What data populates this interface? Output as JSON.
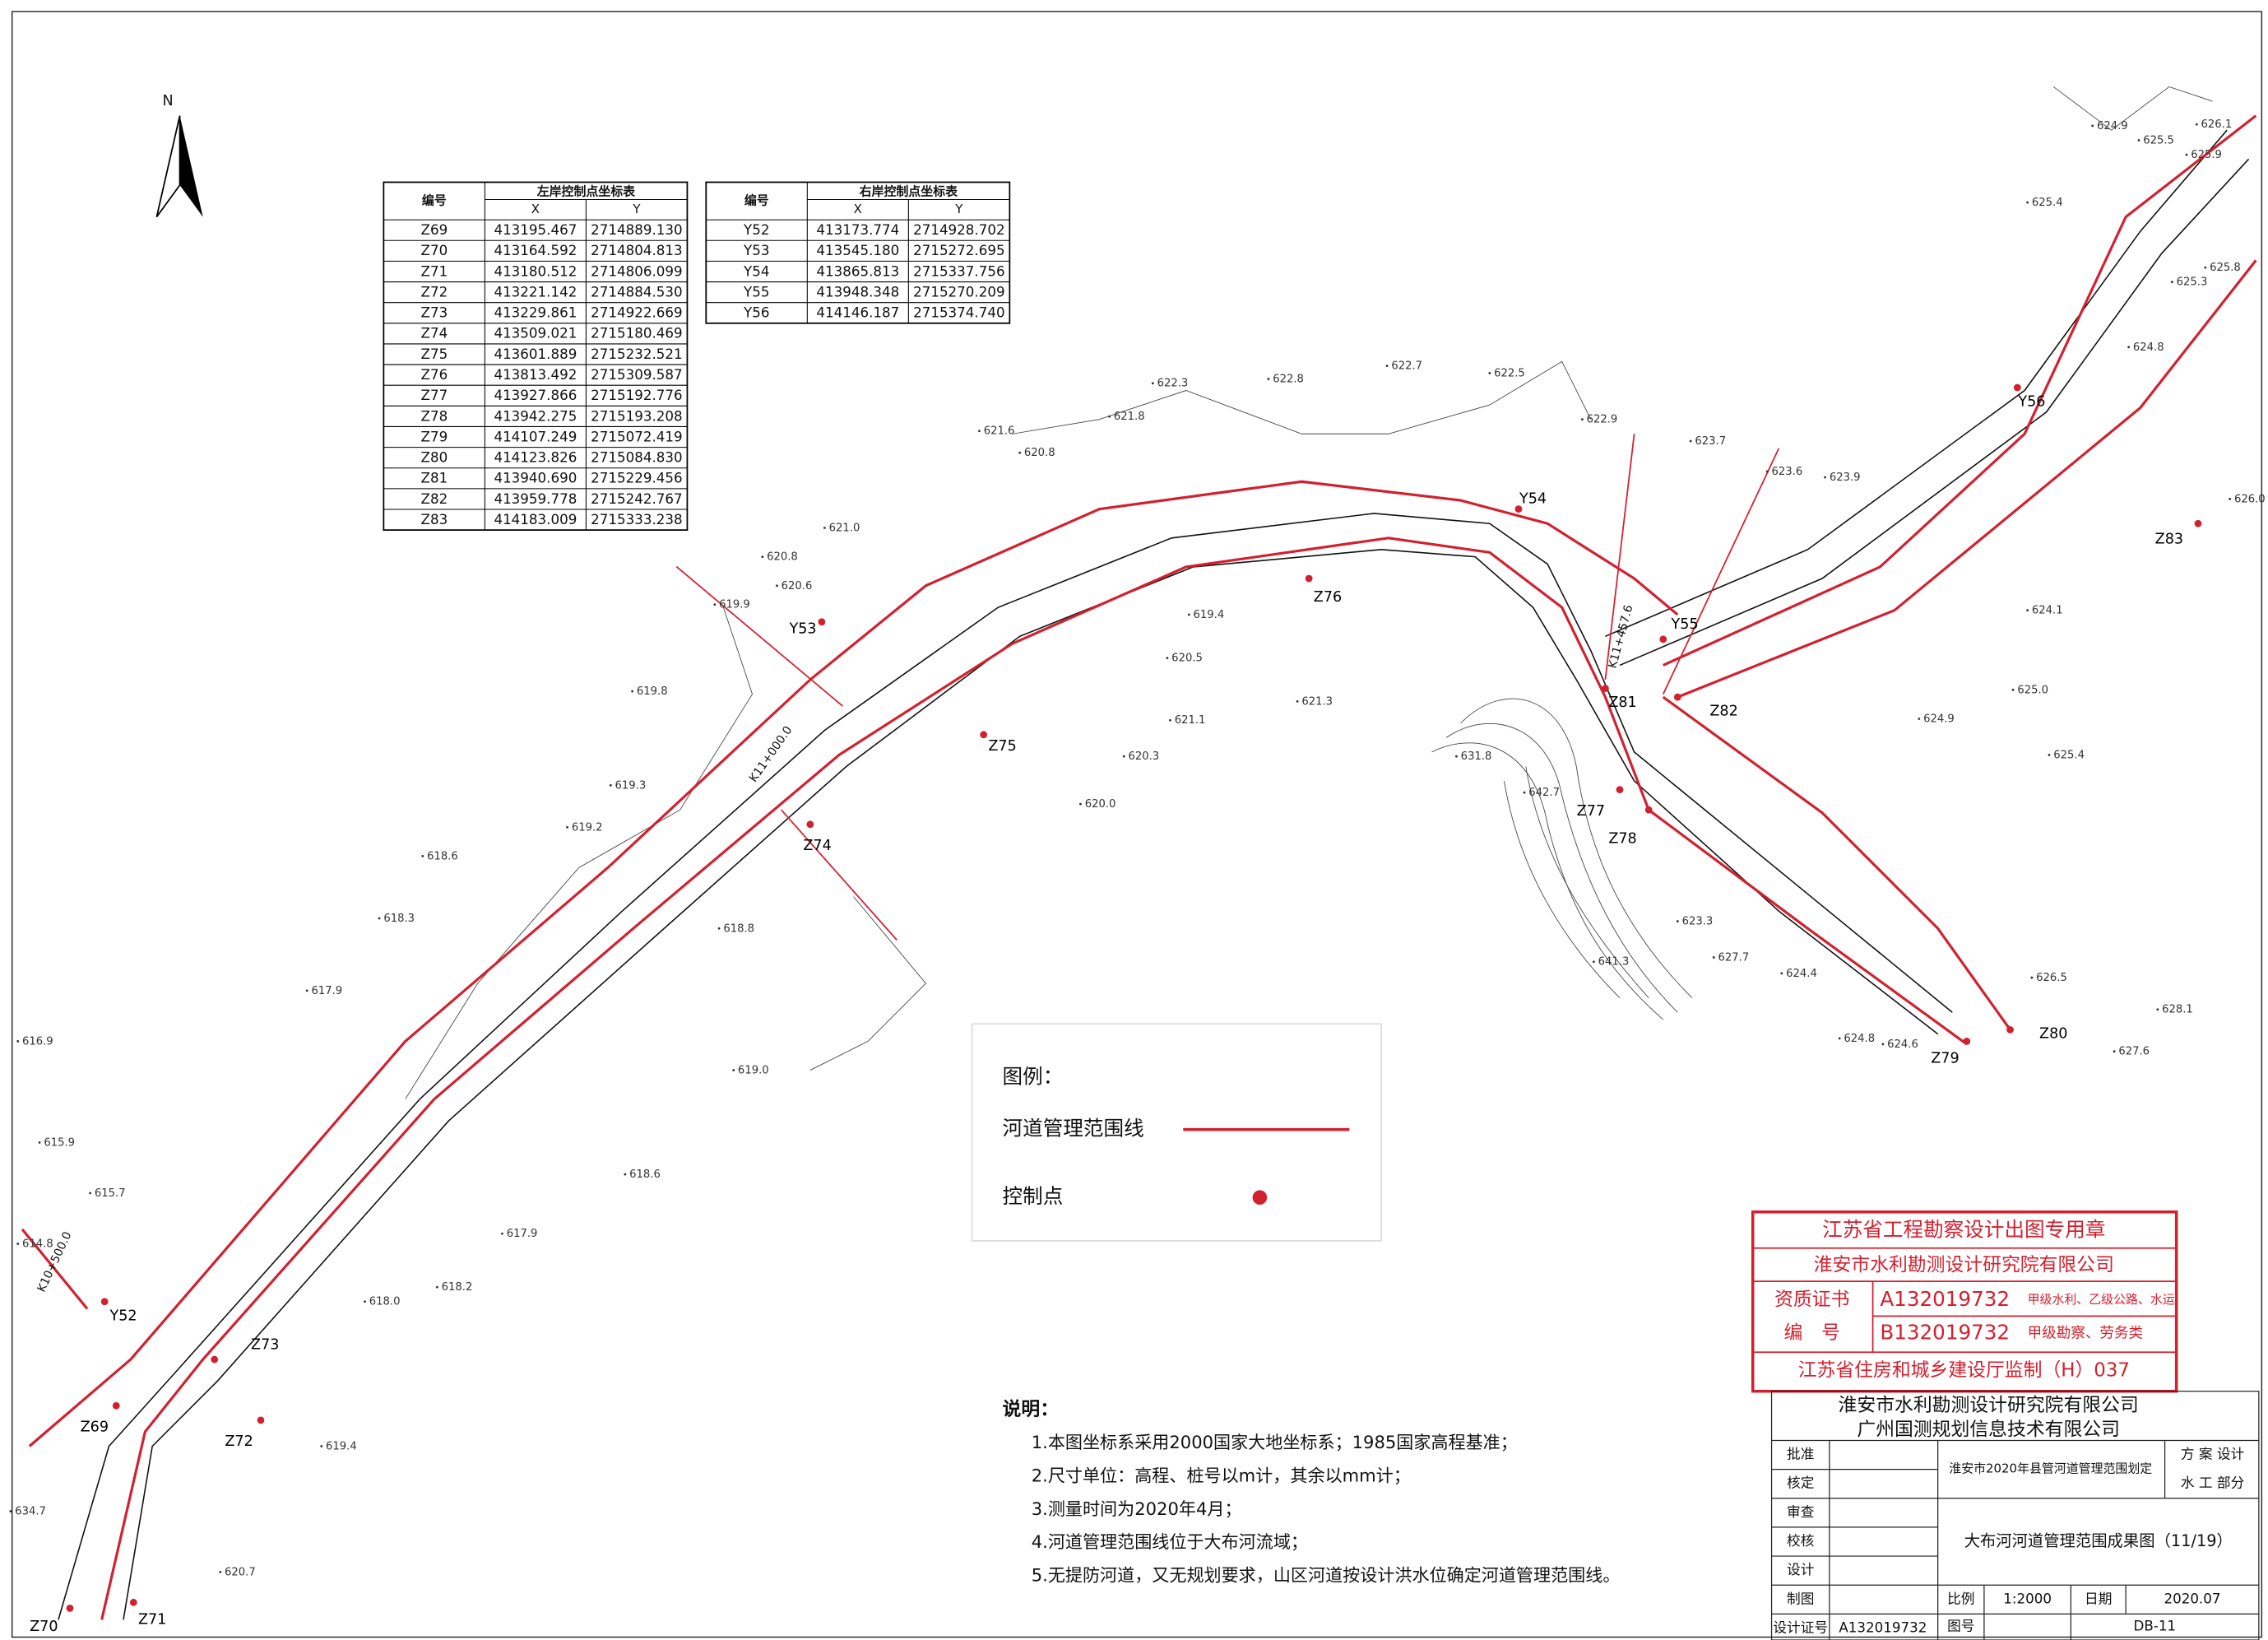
{
  "north": "N",
  "left_table": {
    "title": "左岸控制点坐标表",
    "headers": [
      "编号",
      "X",
      "Y"
    ],
    "rows": [
      [
        "Z69",
        "413195.467",
        "2714889.130"
      ],
      [
        "Z70",
        "413164.592",
        "2714804.813"
      ],
      [
        "Z71",
        "413180.512",
        "2714806.099"
      ],
      [
        "Z72",
        "413221.142",
        "2714884.530"
      ],
      [
        "Z73",
        "413229.861",
        "2714922.669"
      ],
      [
        "Z74",
        "413509.021",
        "2715180.469"
      ],
      [
        "Z75",
        "413601.889",
        "2715232.521"
      ],
      [
        "Z76",
        "413813.492",
        "2715309.587"
      ],
      [
        "Z77",
        "413927.866",
        "2715192.776"
      ],
      [
        "Z78",
        "413942.275",
        "2715193.208"
      ],
      [
        "Z79",
        "414107.249",
        "2715072.419"
      ],
      [
        "Z80",
        "414123.826",
        "2715084.830"
      ],
      [
        "Z81",
        "413940.690",
        "2715229.456"
      ],
      [
        "Z82",
        "413959.778",
        "2715242.767"
      ],
      [
        "Z83",
        "414183.009",
        "2715333.238"
      ]
    ]
  },
  "right_table": {
    "title": "右岸控制点坐标表",
    "headers": [
      "编号",
      "X",
      "Y"
    ],
    "rows": [
      [
        "Y52",
        "413173.774",
        "2714928.702"
      ],
      [
        "Y53",
        "413545.180",
        "2715272.695"
      ],
      [
        "Y54",
        "413865.813",
        "2715337.756"
      ],
      [
        "Y55",
        "413948.348",
        "2715270.209"
      ],
      [
        "Y56",
        "414146.187",
        "2715374.740"
      ]
    ]
  },
  "map": {
    "points": [
      "Z69",
      "Z70",
      "Z71",
      "Z72",
      "Z73",
      "Z74",
      "Z75",
      "Z76",
      "Z77",
      "Z78",
      "Z79",
      "Z80",
      "Z81",
      "Z82",
      "Z83",
      "Y52",
      "Y53",
      "Y54",
      "Y55",
      "Y56"
    ],
    "stations": [
      "K11+000.0",
      "K11+457.6",
      "K10+500.0"
    ],
    "elevations": [
      "626.1",
      "625.9",
      "625.5",
      "624.9",
      "625.4",
      "625.3",
      "625.8",
      "624.8",
      "623.7",
      "623.6",
      "623.9",
      "622.5",
      "622.9",
      "622.7",
      "622.8",
      "622.3",
      "621.8",
      "621.6",
      "620.8",
      "621.0",
      "620.8",
      "620.6",
      "619.9",
      "619.8",
      "619.3",
      "619.2",
      "618.6",
      "618.3",
      "617.9",
      "616.9",
      "615.9",
      "615.7",
      "614.8",
      "621.1",
      "620.5",
      "620.3",
      "620.0",
      "619.4",
      "621.3",
      "618.8",
      "619.0",
      "618.6",
      "617.9",
      "618.2",
      "618.0",
      "619.4",
      "620.7",
      "634.7",
      "631.8",
      "642.7",
      "641.3",
      "623.3",
      "627.7",
      "624.4",
      "624.8",
      "624.6",
      "625.4",
      "626.5",
      "628.1",
      "627.6",
      "625.0",
      "624.9",
      "624.1",
      "626.0"
    ]
  },
  "legend": {
    "title": "图例：",
    "items": [
      "河道管理范围线",
      "控制点"
    ]
  },
  "notes": {
    "title": "说明：",
    "items": [
      "1.本图坐标系采用2000国家大地坐标系；1985国家高程基准；",
      "2.尺寸单位：高程、桩号以m计，其余以mm计；",
      "3.测量时间为2020年4月；",
      "4.河道管理范围线位于大布河流域；",
      "5.无提防河道，又无规划要求，山区河道按设计洪水位确定河道管理范围线。"
    ]
  },
  "stamp": {
    "title": "江苏省工程勘察设计出图专用章",
    "company": "淮安市水利勘测设计研究院有限公司",
    "cert_label_1": "资质证书",
    "cert_label_2": "编　号",
    "cert_a": "A132019732",
    "cert_a_scope": "甲级水利、乙级公路、水运",
    "cert_b": "B132019732",
    "cert_b_scope": "甲级勘察、劳务类",
    "issuer": "江苏省住房和城乡建设厅监制（H）037"
  },
  "title_block": {
    "company_1": "淮安市水利勘测设计研究院有限公司",
    "company_2": "广州国测规划信息技术有限公司",
    "project": "淮安市2020年县管河道管理范围划定",
    "stage": "方 案 设计",
    "part": "水 工 部分",
    "drawing_title": "大布河河道管理范围成果图（11/19）",
    "roles": [
      "批准",
      "核定",
      "审查",
      "校核",
      "设计",
      "制图",
      "设计证号"
    ],
    "cert_no": "A132019732",
    "scale_label": "比例",
    "scale": "1:2000",
    "date_label": "日期",
    "date": "2020.07",
    "number_label": "图号",
    "number": "DB-11"
  }
}
